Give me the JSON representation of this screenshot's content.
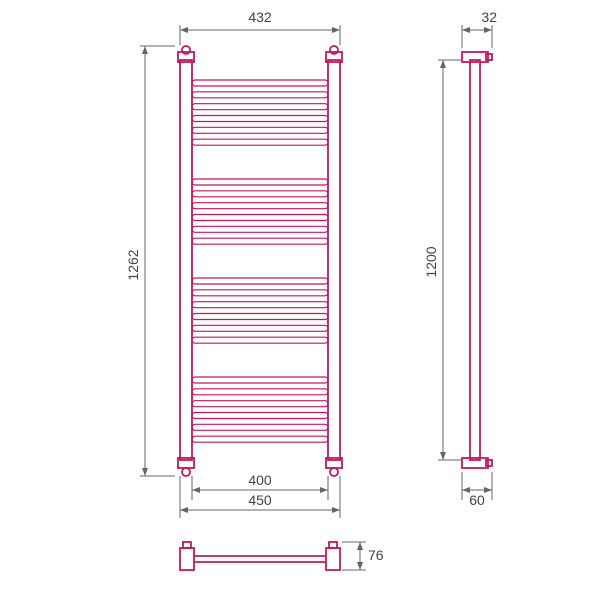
{
  "diagram": {
    "type": "technical-drawing",
    "object": "heated-towel-rail",
    "stroke_color": "#c2185b",
    "dim_color": "#666666",
    "text_color": "#444444",
    "background": "#ffffff",
    "font_size_pt": 11,
    "dimensions": {
      "top_width": "432",
      "left_height": "1262",
      "bottom_width_inner": "400",
      "bottom_width_outer": "450",
      "side_top_depth": "32",
      "side_height": "1200",
      "side_bottom_depth": "60",
      "bottom_view_height": "76"
    },
    "front_view": {
      "rung_groups": 4,
      "rungs_per_group": 6
    }
  }
}
